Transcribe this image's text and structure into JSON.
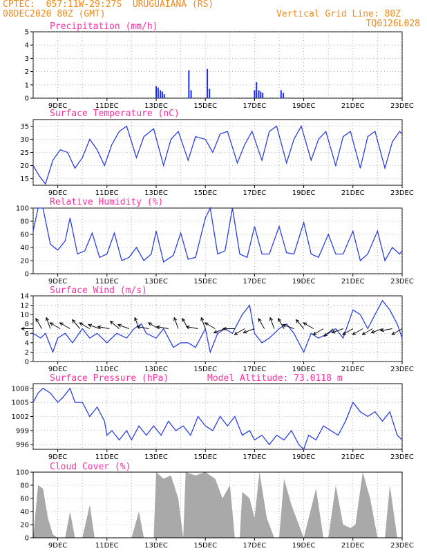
{
  "header": {
    "line1_left": "CPTEC:  057:11W-29:27S  URUGUAIANA (RS)",
    "line2_left": "08DEC2020 80Z (GMT)",
    "line2_right": "Vertical Grid Line: 80Z",
    "line3_right": "TQ0126L028"
  },
  "colors": {
    "line": "#2a3fe0",
    "bars": "#1a2ff0",
    "cloud": "#a9a9a9",
    "title": "#ff2fa0",
    "header": "#f08a1c"
  },
  "chart_data": [
    {
      "id": "precip",
      "type": "bar",
      "title": "Precipitation (mm/h)",
      "yticks": [
        0,
        1,
        2,
        3,
        4,
        5
      ],
      "ylim": [
        0,
        5
      ],
      "x_day_labels": [
        "9DEC",
        "11DEC",
        "13DEC",
        "15DEC",
        "17DEC",
        "19DEC",
        "21DEC",
        "23DEC"
      ],
      "xlim_days": [
        8.0,
        23.0
      ],
      "bars": [
        {
          "x": 13.0,
          "v": 0.9
        },
        {
          "x": 13.08,
          "v": 0.8
        },
        {
          "x": 13.17,
          "v": 0.6
        },
        {
          "x": 13.25,
          "v": 0.5
        },
        {
          "x": 13.33,
          "v": 0.3
        },
        {
          "x": 14.33,
          "v": 2.1
        },
        {
          "x": 14.42,
          "v": 0.6
        },
        {
          "x": 15.08,
          "v": 2.2
        },
        {
          "x": 15.17,
          "v": 0.7
        },
        {
          "x": 17.0,
          "v": 0.6
        },
        {
          "x": 17.08,
          "v": 1.2
        },
        {
          "x": 17.17,
          "v": 0.6
        },
        {
          "x": 17.25,
          "v": 0.5
        },
        {
          "x": 17.33,
          "v": 0.4
        },
        {
          "x": 18.08,
          "v": 0.6
        },
        {
          "x": 18.17,
          "v": 0.4
        }
      ]
    },
    {
      "id": "temp",
      "type": "line",
      "title": "Surface Temperature (nC)",
      "yticks": [
        15,
        20,
        25,
        30,
        35
      ],
      "ylim": [
        12.5,
        37.5
      ],
      "x_day_labels": [
        "9DEC",
        "11DEC",
        "13DEC",
        "15DEC",
        "17DEC",
        "19DEC",
        "21DEC",
        "23DEC"
      ],
      "xlim_days": [
        8.0,
        23.0
      ],
      "points": [
        [
          8.0,
          20
        ],
        [
          8.25,
          16
        ],
        [
          8.5,
          13
        ],
        [
          8.8,
          22
        ],
        [
          9.1,
          26
        ],
        [
          9.4,
          25
        ],
        [
          9.7,
          19
        ],
        [
          10.0,
          23
        ],
        [
          10.3,
          30
        ],
        [
          10.6,
          26
        ],
        [
          10.9,
          20
        ],
        [
          11.2,
          28
        ],
        [
          11.5,
          33
        ],
        [
          11.8,
          35
        ],
        [
          12.2,
          23
        ],
        [
          12.5,
          31
        ],
        [
          12.9,
          34
        ],
        [
          13.3,
          20
        ],
        [
          13.6,
          30
        ],
        [
          13.9,
          33
        ],
        [
          14.3,
          22
        ],
        [
          14.6,
          31
        ],
        [
          15.0,
          30
        ],
        [
          15.3,
          25
        ],
        [
          15.6,
          32
        ],
        [
          15.9,
          33
        ],
        [
          16.3,
          21
        ],
        [
          16.6,
          28
        ],
        [
          16.9,
          33
        ],
        [
          17.3,
          22
        ],
        [
          17.6,
          33
        ],
        [
          17.9,
          35
        ],
        [
          18.3,
          21
        ],
        [
          18.6,
          30
        ],
        [
          18.9,
          35
        ],
        [
          19.3,
          22
        ],
        [
          19.6,
          30
        ],
        [
          19.9,
          33
        ],
        [
          20.3,
          20
        ],
        [
          20.6,
          31
        ],
        [
          20.9,
          33
        ],
        [
          21.3,
          19
        ],
        [
          21.6,
          31
        ],
        [
          21.9,
          33
        ],
        [
          22.3,
          19
        ],
        [
          22.6,
          29
        ],
        [
          22.9,
          33
        ],
        [
          23.0,
          32
        ]
      ]
    },
    {
      "id": "rh",
      "type": "line",
      "title": "Relative Humidity (%)",
      "yticks": [
        0,
        20,
        40,
        60,
        80,
        100
      ],
      "ylim": [
        0,
        100
      ],
      "x_day_labels": [
        "9DEC",
        "11DEC",
        "13DEC",
        "15DEC",
        "17DEC",
        "19DEC",
        "21DEC",
        "23DEC"
      ],
      "xlim_days": [
        8.0,
        23.0
      ],
      "points": [
        [
          8.0,
          65
        ],
        [
          8.2,
          100
        ],
        [
          8.4,
          100
        ],
        [
          8.7,
          45
        ],
        [
          9.0,
          36
        ],
        [
          9.3,
          50
        ],
        [
          9.5,
          85
        ],
        [
          9.8,
          30
        ],
        [
          10.1,
          35
        ],
        [
          10.4,
          62
        ],
        [
          10.7,
          25
        ],
        [
          11.0,
          30
        ],
        [
          11.3,
          62
        ],
        [
          11.6,
          20
        ],
        [
          11.9,
          25
        ],
        [
          12.2,
          40
        ],
        [
          12.5,
          20
        ],
        [
          12.8,
          30
        ],
        [
          13.0,
          65
        ],
        [
          13.3,
          18
        ],
        [
          13.7,
          28
        ],
        [
          14.0,
          62
        ],
        [
          14.3,
          22
        ],
        [
          14.6,
          25
        ],
        [
          15.0,
          85
        ],
        [
          15.2,
          100
        ],
        [
          15.5,
          30
        ],
        [
          15.8,
          35
        ],
        [
          16.1,
          100
        ],
        [
          16.4,
          30
        ],
        [
          16.7,
          25
        ],
        [
          17.0,
          72
        ],
        [
          17.3,
          30
        ],
        [
          17.6,
          30
        ],
        [
          18.0,
          72
        ],
        [
          18.3,
          32
        ],
        [
          18.6,
          30
        ],
        [
          19.0,
          78
        ],
        [
          19.3,
          30
        ],
        [
          19.6,
          25
        ],
        [
          20.0,
          60
        ],
        [
          20.3,
          30
        ],
        [
          20.6,
          30
        ],
        [
          21.0,
          65
        ],
        [
          21.3,
          20
        ],
        [
          21.6,
          30
        ],
        [
          22.0,
          65
        ],
        [
          22.3,
          20
        ],
        [
          22.6,
          40
        ],
        [
          22.9,
          30
        ],
        [
          23.0,
          35
        ]
      ]
    },
    {
      "id": "wind",
      "type": "line",
      "title": "Surface Wind (m/s)",
      "yticks": [
        0,
        2,
        4,
        6,
        8,
        10,
        12,
        14
      ],
      "ylim": [
        0,
        14
      ],
      "x_day_labels": [
        "9DEC",
        "11DEC",
        "13DEC",
        "15DEC",
        "17DEC",
        "19DEC",
        "21DEC",
        "23DEC"
      ],
      "xlim_days": [
        8.0,
        23.0
      ],
      "points": [
        [
          8.0,
          6
        ],
        [
          8.3,
          5
        ],
        [
          8.5,
          6
        ],
        [
          8.8,
          2
        ],
        [
          9.0,
          5
        ],
        [
          9.3,
          6
        ],
        [
          9.6,
          4
        ],
        [
          10.0,
          7
        ],
        [
          10.3,
          5
        ],
        [
          10.6,
          6
        ],
        [
          11.0,
          4
        ],
        [
          11.4,
          6
        ],
        [
          11.8,
          5
        ],
        [
          12.1,
          7
        ],
        [
          12.4,
          8
        ],
        [
          12.6,
          6
        ],
        [
          13.0,
          5
        ],
        [
          13.3,
          7
        ],
        [
          13.7,
          3
        ],
        [
          14.0,
          4
        ],
        [
          14.3,
          4
        ],
        [
          14.6,
          3
        ],
        [
          15.0,
          7
        ],
        [
          15.2,
          2
        ],
        [
          15.5,
          6
        ],
        [
          15.8,
          7
        ],
        [
          16.1,
          6
        ],
        [
          16.5,
          10
        ],
        [
          16.8,
          12
        ],
        [
          17.0,
          6
        ],
        [
          17.3,
          4
        ],
        [
          17.6,
          5
        ],
        [
          18.0,
          7
        ],
        [
          18.3,
          8
        ],
        [
          18.6,
          6
        ],
        [
          19.0,
          2
        ],
        [
          19.3,
          6
        ],
        [
          19.6,
          5
        ],
        [
          20.0,
          6
        ],
        [
          20.3,
          7
        ],
        [
          20.6,
          5
        ],
        [
          21.0,
          11
        ],
        [
          21.3,
          10
        ],
        [
          21.6,
          7
        ],
        [
          21.9,
          10
        ],
        [
          22.2,
          13
        ],
        [
          22.5,
          11
        ],
        [
          22.8,
          8
        ],
        [
          23.0,
          5
        ]
      ],
      "arrows": [
        [
          8.0,
          180
        ],
        [
          8.35,
          120
        ],
        [
          8.7,
          110
        ],
        [
          9.1,
          150
        ],
        [
          9.5,
          150
        ],
        [
          9.9,
          130
        ],
        [
          10.3,
          150
        ],
        [
          10.7,
          160
        ],
        [
          11.1,
          170
        ],
        [
          11.5,
          140
        ],
        [
          11.9,
          160
        ],
        [
          12.3,
          110
        ],
        [
          12.7,
          170
        ],
        [
          13.1,
          150
        ],
        [
          13.5,
          170
        ],
        [
          13.9,
          110
        ],
        [
          14.3,
          120
        ],
        [
          14.7,
          170
        ],
        [
          15.0,
          110
        ],
        [
          15.4,
          150
        ],
        [
          15.8,
          200
        ],
        [
          16.2,
          180
        ],
        [
          16.6,
          210
        ],
        [
          17.0,
          200
        ],
        [
          17.4,
          120
        ],
        [
          17.8,
          110
        ],
        [
          18.2,
          120
        ],
        [
          18.6,
          160
        ],
        [
          19.0,
          130
        ],
        [
          19.4,
          150
        ],
        [
          19.8,
          210
        ],
        [
          20.2,
          220
        ],
        [
          20.6,
          200
        ],
        [
          21.0,
          210
        ],
        [
          21.4,
          210
        ],
        [
          21.8,
          210
        ],
        [
          22.2,
          200
        ],
        [
          22.6,
          190
        ],
        [
          23.0,
          210
        ]
      ]
    },
    {
      "id": "pres",
      "type": "line",
      "title": "Surface Pressure (hPa)",
      "subtitle": "Model Altitude: 73.0118  m",
      "yticks": [
        996,
        999,
        1002,
        1005,
        1008
      ],
      "ylim": [
        995,
        1009
      ],
      "x_day_labels": [
        "9DEC",
        "11DEC",
        "13DEC",
        "15DEC",
        "17DEC",
        "19DEC",
        "21DEC",
        "23DEC"
      ],
      "xlim_days": [
        8.0,
        23.0
      ],
      "points": [
        [
          8.0,
          1005
        ],
        [
          8.2,
          1007
        ],
        [
          8.4,
          1008
        ],
        [
          8.7,
          1007
        ],
        [
          9.0,
          1005
        ],
        [
          9.2,
          1006
        ],
        [
          9.5,
          1008
        ],
        [
          9.7,
          1005
        ],
        [
          10.0,
          1005
        ],
        [
          10.3,
          1002
        ],
        [
          10.6,
          1004
        ],
        [
          10.9,
          1001
        ],
        [
          11.0,
          998
        ],
        [
          11.2,
          999
        ],
        [
          11.5,
          997
        ],
        [
          11.8,
          999
        ],
        [
          12.0,
          997
        ],
        [
          12.3,
          1000
        ],
        [
          12.6,
          998
        ],
        [
          12.9,
          1000
        ],
        [
          13.2,
          998
        ],
        [
          13.5,
          1001
        ],
        [
          13.8,
          999
        ],
        [
          14.1,
          1000
        ],
        [
          14.4,
          998
        ],
        [
          14.7,
          1002
        ],
        [
          15.0,
          1000
        ],
        [
          15.3,
          999
        ],
        [
          15.6,
          1002
        ],
        [
          15.9,
          1000
        ],
        [
          16.2,
          1002
        ],
        [
          16.5,
          998
        ],
        [
          16.8,
          999
        ],
        [
          17.0,
          997
        ],
        [
          17.3,
          998
        ],
        [
          17.6,
          996
        ],
        [
          17.9,
          998
        ],
        [
          18.2,
          997
        ],
        [
          18.5,
          999
        ],
        [
          18.8,
          996
        ],
        [
          19.0,
          995
        ],
        [
          19.2,
          998
        ],
        [
          19.5,
          997
        ],
        [
          19.8,
          1000
        ],
        [
          20.1,
          999
        ],
        [
          20.4,
          998
        ],
        [
          20.7,
          1001
        ],
        [
          21.0,
          1005
        ],
        [
          21.3,
          1003
        ],
        [
          21.6,
          1002
        ],
        [
          21.9,
          1003
        ],
        [
          22.2,
          1001
        ],
        [
          22.5,
          1003
        ],
        [
          22.8,
          998
        ],
        [
          23.0,
          997
        ]
      ]
    },
    {
      "id": "cloud",
      "type": "area",
      "title": "Cloud Cover (%)",
      "yticks": [
        0,
        20,
        40,
        60,
        80,
        100
      ],
      "ylim": [
        0,
        100
      ],
      "x_day_labels": [
        "9DEC",
        "11DEC",
        "13DEC",
        "15DEC",
        "17DEC",
        "19DEC",
        "21DEC",
        "23DEC"
      ],
      "xlim_days": [
        8.0,
        23.0
      ],
      "points": [
        [
          8.0,
          0
        ],
        [
          8.2,
          80
        ],
        [
          8.4,
          75
        ],
        [
          8.6,
          30
        ],
        [
          8.8,
          5
        ],
        [
          9.0,
          0
        ],
        [
          9.3,
          0
        ],
        [
          9.5,
          40
        ],
        [
          9.7,
          0
        ],
        [
          10.0,
          0
        ],
        [
          10.3,
          50
        ],
        [
          10.5,
          0
        ],
        [
          11.0,
          0
        ],
        [
          12.0,
          0
        ],
        [
          12.3,
          40
        ],
        [
          12.5,
          0
        ],
        [
          12.9,
          0
        ],
        [
          13.0,
          100
        ],
        [
          13.3,
          90
        ],
        [
          13.6,
          95
        ],
        [
          13.9,
          60
        ],
        [
          14.1,
          0
        ],
        [
          14.2,
          100
        ],
        [
          14.6,
          95
        ],
        [
          15.0,
          100
        ],
        [
          15.4,
          90
        ],
        [
          15.7,
          60
        ],
        [
          16.0,
          80
        ],
        [
          16.2,
          0
        ],
        [
          16.4,
          0
        ],
        [
          16.5,
          70
        ],
        [
          16.8,
          60
        ],
        [
          17.0,
          30
        ],
        [
          17.2,
          100
        ],
        [
          17.5,
          30
        ],
        [
          17.8,
          0
        ],
        [
          18.0,
          0
        ],
        [
          18.2,
          90
        ],
        [
          18.5,
          50
        ],
        [
          18.8,
          20
        ],
        [
          19.0,
          0
        ],
        [
          19.2,
          30
        ],
        [
          19.5,
          75
        ],
        [
          19.8,
          0
        ],
        [
          20.0,
          0
        ],
        [
          20.3,
          80
        ],
        [
          20.6,
          20
        ],
        [
          20.9,
          15
        ],
        [
          21.1,
          20
        ],
        [
          21.4,
          100
        ],
        [
          21.7,
          60
        ],
        [
          22.0,
          0
        ],
        [
          22.3,
          0
        ],
        [
          22.5,
          80
        ],
        [
          22.8,
          0
        ],
        [
          23.0,
          0
        ]
      ]
    }
  ]
}
